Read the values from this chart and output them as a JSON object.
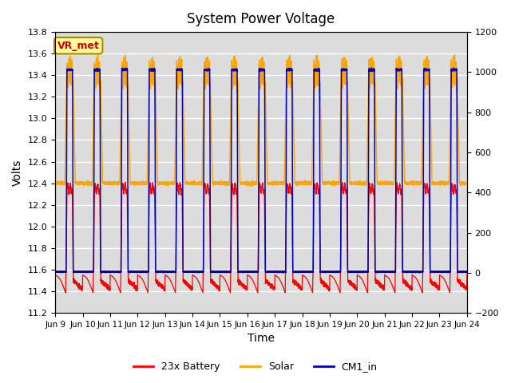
{
  "title": "System Power Voltage",
  "xlabel": "Time",
  "ylabel_left": "Volts",
  "ylim_left": [
    11.2,
    13.8
  ],
  "ylim_right": [
    -200,
    1200
  ],
  "yticks_left": [
    11.2,
    11.4,
    11.6,
    11.8,
    12.0,
    12.2,
    12.4,
    12.6,
    12.8,
    13.0,
    13.2,
    13.4,
    13.6,
    13.8
  ],
  "yticks_right": [
    -200,
    0,
    200,
    400,
    600,
    800,
    1000,
    1200
  ],
  "xtick_labels": [
    "Jun 9",
    "Jun 10",
    "Jun 11",
    "Jun 12",
    "Jun 13",
    "Jun 14",
    "Jun 15",
    "Jun 16",
    "Jun 17",
    "Jun 18",
    "Jun 19",
    "Jun 20",
    "Jun 21",
    "Jun 22",
    "Jun 23",
    "Jun 24"
  ],
  "legend_entries": [
    "23x Battery",
    "Solar",
    "CM1_in"
  ],
  "legend_colors": [
    "#FF0000",
    "#FFA500",
    "#0000BB"
  ],
  "vr_met_label": "VR_met",
  "vr_met_color": "#CC0000",
  "vr_met_bg": "#FFFF99",
  "background_color": "#DCDCDC",
  "grid_color": "#FFFFFF",
  "n_days": 15,
  "title_fontsize": 12
}
